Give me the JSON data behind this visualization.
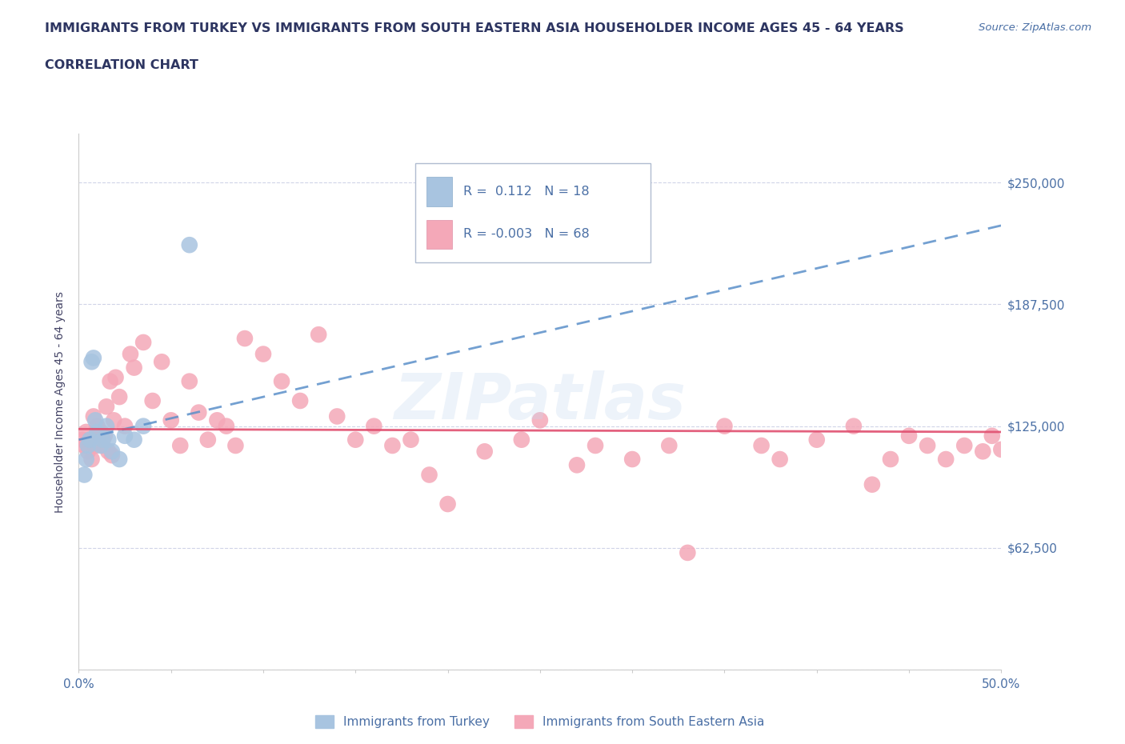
{
  "title_line1": "IMMIGRANTS FROM TURKEY VS IMMIGRANTS FROM SOUTH EASTERN ASIA HOUSEHOLDER INCOME AGES 45 - 64 YEARS",
  "title_line2": "CORRELATION CHART",
  "source_text": "Source: ZipAtlas.com",
  "ylabel": "Householder Income Ages 45 - 64 years",
  "xlim": [
    0.0,
    0.5
  ],
  "ylim": [
    0,
    275000
  ],
  "yticks": [
    0,
    62500,
    125000,
    187500,
    250000
  ],
  "ytick_labels": [
    "",
    "$62,500",
    "$125,000",
    "$187,500",
    "$250,000"
  ],
  "xticks": [
    0.0,
    0.05,
    0.1,
    0.15,
    0.2,
    0.25,
    0.3,
    0.35,
    0.4,
    0.45,
    0.5
  ],
  "xtick_labels": [
    "0.0%",
    "",
    "",
    "",
    "",
    "",
    "",
    "",
    "",
    "",
    "50.0%"
  ],
  "watermark_text": "ZIPatlas",
  "turkey_color": "#a8c4e0",
  "sea_color": "#f4a8b8",
  "trendline_turkey_color": "#5b8fc9",
  "trendline_sea_color": "#e05070",
  "title_color": "#2d3561",
  "axis_color": "#4a6fa5",
  "grid_color": "#d0d4e8",
  "background_color": "#ffffff",
  "turkey_R": 0.112,
  "turkey_N": 18,
  "sea_R": -0.003,
  "sea_N": 68,
  "turkey_trend_x": [
    0.0,
    0.5
  ],
  "turkey_trend_y": [
    118000,
    228000
  ],
  "sea_trend_x": [
    0.0,
    0.5
  ],
  "sea_trend_y": [
    123500,
    122000
  ],
  "turkey_x": [
    0.003,
    0.004,
    0.005,
    0.006,
    0.007,
    0.008,
    0.009,
    0.01,
    0.012,
    0.013,
    0.015,
    0.016,
    0.018,
    0.022,
    0.025,
    0.03,
    0.035,
    0.06
  ],
  "turkey_y": [
    100000,
    108000,
    115000,
    118000,
    158000,
    160000,
    128000,
    122000,
    115000,
    118000,
    125000,
    118000,
    112000,
    108000,
    120000,
    118000,
    125000,
    218000
  ],
  "sea_x": [
    0.002,
    0.003,
    0.004,
    0.005,
    0.006,
    0.007,
    0.008,
    0.009,
    0.01,
    0.011,
    0.012,
    0.013,
    0.014,
    0.015,
    0.016,
    0.017,
    0.018,
    0.019,
    0.02,
    0.022,
    0.025,
    0.028,
    0.03,
    0.035,
    0.04,
    0.045,
    0.05,
    0.055,
    0.06,
    0.065,
    0.07,
    0.075,
    0.08,
    0.085,
    0.09,
    0.1,
    0.11,
    0.12,
    0.13,
    0.14,
    0.15,
    0.16,
    0.17,
    0.18,
    0.19,
    0.2,
    0.22,
    0.24,
    0.25,
    0.27,
    0.28,
    0.3,
    0.32,
    0.33,
    0.35,
    0.37,
    0.38,
    0.4,
    0.42,
    0.43,
    0.44,
    0.45,
    0.46,
    0.47,
    0.48,
    0.49,
    0.495,
    0.5
  ],
  "sea_y": [
    118000,
    115000,
    122000,
    112000,
    118000,
    108000,
    130000,
    115000,
    125000,
    118000,
    122000,
    115000,
    120000,
    135000,
    112000,
    148000,
    110000,
    128000,
    150000,
    140000,
    125000,
    162000,
    155000,
    168000,
    138000,
    158000,
    128000,
    115000,
    148000,
    132000,
    118000,
    128000,
    125000,
    115000,
    170000,
    162000,
    148000,
    138000,
    172000,
    130000,
    118000,
    125000,
    115000,
    118000,
    100000,
    85000,
    112000,
    118000,
    128000,
    105000,
    115000,
    108000,
    115000,
    60000,
    125000,
    115000,
    108000,
    118000,
    125000,
    95000,
    108000,
    120000,
    115000,
    108000,
    115000,
    112000,
    120000,
    113000
  ]
}
